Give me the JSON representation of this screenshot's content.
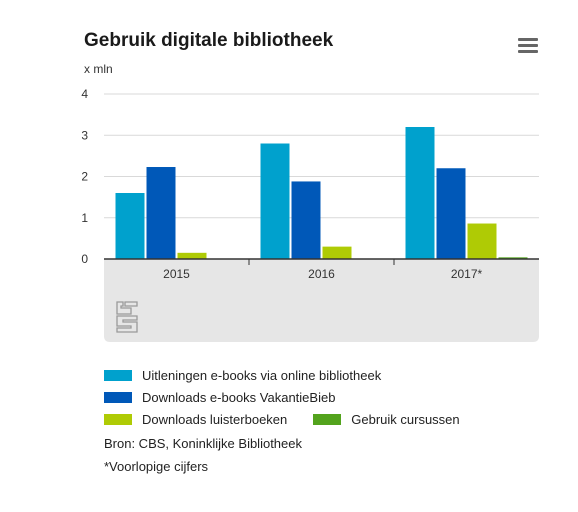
{
  "header": {
    "title": "Gebruik digitale bibliotheek",
    "unit": "x mln",
    "menu_icon": "hamburger-menu-icon"
  },
  "logo_icon": "cbs-logo-icon",
  "footer": {
    "source": "Bron: CBS, Koninklijke Bibliotheek",
    "note": "*Voorlopige cijfers"
  },
  "colors": {
    "plot_bg": "#e6e6e6",
    "grid": "#d9d9d9",
    "axis": "#333333"
  },
  "chart_data": {
    "type": "bar",
    "title": "Gebruik digitale bibliotheek",
    "ylabel": "x mln",
    "xlabel": "",
    "categories": [
      "2015",
      "2016",
      "2017*"
    ],
    "ylim": [
      0,
      4
    ],
    "yticks": [
      0,
      1,
      2,
      3,
      4
    ],
    "grid": true,
    "legend_position": "bottom",
    "series": [
      {
        "name": "Uitleningen e-books via online bibliotheek",
        "color": "#00a1cd",
        "values": [
          1.6,
          2.8,
          3.2
        ]
      },
      {
        "name": "Downloads e-books VakantieBieb",
        "color": "#0058b8",
        "values": [
          2.23,
          1.88,
          2.2
        ]
      },
      {
        "name": "Downloads luisterboeken",
        "color": "#afcb05",
        "values": [
          0.15,
          0.3,
          0.86
        ]
      },
      {
        "name": "Gebruik cursussen",
        "color": "#53a31d",
        "values": [
          0,
          0,
          0.04
        ]
      }
    ]
  }
}
